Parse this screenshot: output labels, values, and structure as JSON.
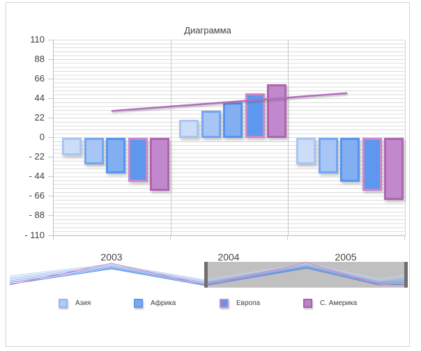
{
  "chart": {
    "title": "Диаграмма",
    "y_axis": {
      "tick_labels": [
        "110",
        "88",
        "66",
        "44",
        "22",
        "0",
        "- 22",
        "- 44",
        "- 66",
        "- 88",
        "- 110"
      ],
      "max": 110,
      "min": -110,
      "major_step": 22
    },
    "x_axis": {
      "categories": [
        "2003",
        "2004",
        "2005"
      ]
    },
    "legend": [
      {
        "label": "Азия",
        "fill": "#adcaf5",
        "border": "#93b8f1"
      },
      {
        "label": "Африка",
        "fill": "#77a8f0",
        "border": "#619aef"
      },
      {
        "label": "Европа",
        "fill": "#5e97ee",
        "border": "#d086ca"
      },
      {
        "label": "С. Америка",
        "fill": "#be81c9",
        "border": "#a862ab"
      }
    ]
  },
  "chart_data": {
    "type": "bar",
    "title": "Диаграмма",
    "categories": [
      "2003",
      "2004",
      "2005"
    ],
    "series": [
      {
        "name": "Азия",
        "values": [
          -20,
          20,
          -30
        ],
        "fill": "#cbddf8",
        "border": "#a9c6f3"
      },
      {
        "name": "Африка",
        "values": [
          -30,
          30,
          -40
        ],
        "fill": "#a7c6f5",
        "border": "#74a5f0"
      },
      {
        "name": "",
        "values": [
          -40,
          40,
          -50
        ],
        "fill": "#82aff2",
        "border": "#5694ed"
      },
      {
        "name": "Европа",
        "values": [
          -50,
          50,
          -60
        ],
        "fill": "#5d97ee",
        "border": "#cb86cb"
      },
      {
        "name": "С. Америка",
        "values": [
          -60,
          60,
          -70
        ],
        "fill": "#c188cd",
        "border": "#af64ae"
      }
    ],
    "trendline": {
      "from_category": "2003",
      "to_category": "2005",
      "values": [
        30,
        50
      ],
      "color": "#b16fbe"
    },
    "ylim": [
      -110,
      110
    ],
    "y_major_step": 22,
    "grid": true,
    "legend_position": "bottom"
  },
  "navigator": {
    "selection_color": "#c0c0c0",
    "handle_color": "#6f6f6f",
    "preview_line_colors": [
      "#c3d6f2",
      "#abc5ee",
      "#93b3ea",
      "#7ba2e7",
      "#6391e3",
      "#4b80e0"
    ],
    "preview_accent_color": "#d881c3"
  }
}
